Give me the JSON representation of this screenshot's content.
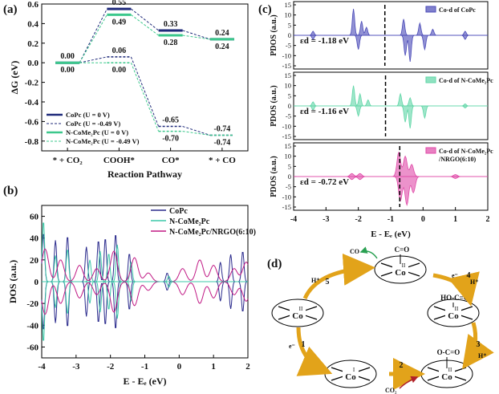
{
  "chart_data": [
    {
      "panel": "(a)",
      "type": "line",
      "xlabel": "Reaction Pathway",
      "ylabel": "ΔG (eV)",
      "ylim": [
        -0.9,
        0.6
      ],
      "yticks": [
        "-0.8",
        "-0.6",
        "-0.4",
        "-0.2",
        "0.0",
        "0.2",
        "0.4",
        "0.6"
      ],
      "categories": [
        "* + CO₂",
        "COOH*",
        "CO*",
        "* + CO"
      ],
      "series": [
        {
          "name": "CoPc (U = 0 V)",
          "color": "#1f2a7a",
          "dash": false,
          "values": [
            0.0,
            0.55,
            0.33,
            0.24
          ],
          "labels": [
            "0.00",
            "0.55",
            "0.33",
            "0.24"
          ]
        },
        {
          "name": "CoPc (U = -0.49 V)",
          "color": "#1f2a7a",
          "dash": true,
          "values": [
            0.0,
            0.06,
            -0.65,
            -0.74
          ],
          "labels": [
            "",
            "0.06",
            "-0.65",
            "-0.74"
          ]
        },
        {
          "name": "N-CoMe₂Pc (U = 0 V)",
          "color": "#3cc88c",
          "dash": false,
          "values": [
            0.0,
            0.49,
            0.28,
            0.24
          ],
          "labels": [
            "0.00",
            "0.49",
            "0.28",
            "0.24"
          ]
        },
        {
          "name": "N-CoMe₂Pc (U = -0.49 V)",
          "color": "#3cc88c",
          "dash": true,
          "values": [
            0.0,
            0.0,
            -0.7,
            -0.74
          ],
          "labels": [
            "",
            "0.00",
            "-0.70",
            "-0.74"
          ]
        }
      ],
      "legend": "bottom-left"
    },
    {
      "panel": "(b)",
      "type": "line",
      "xlabel": "E - Eₑ (eV)",
      "ylabel": "DOS (a.u.)",
      "xlim": [
        -4,
        2
      ],
      "ylim": [
        -70,
        70
      ],
      "xticks": [
        "-4",
        "-3",
        "-2",
        "-1",
        "0",
        "1",
        "2"
      ],
      "yticks": [
        "-60",
        "-40",
        "-20",
        "0",
        "20",
        "40",
        "60"
      ],
      "series": [
        {
          "name": "CoPc",
          "color": "#2a2a8c"
        },
        {
          "name": "N-CoMe₂Pc",
          "color": "#3cc8a8"
        },
        {
          "name": "N-CoMe₂Pc/NRGO(6:10)",
          "color": "#c01884"
        }
      ],
      "legend": "top-right"
    },
    {
      "panel": "(c)",
      "type": "area",
      "xlabel": "E - Eₑ (eV)",
      "ylabel": "PDOS (a.u.)",
      "xlim": [
        -4,
        2
      ],
      "xticks": [
        "-4",
        "-3",
        "-2",
        "-1",
        "0",
        "1",
        "2"
      ],
      "yticks": [
        "-15",
        "-10",
        "-5",
        "0",
        "5",
        "10",
        "15"
      ],
      "subplots": [
        {
          "legend": "Co-d of CoPc",
          "color": "#4a4ab8",
          "d_band_center": -1.18,
          "annotation": "εd = -1.18 eV"
        },
        {
          "legend": "Co-d of N-CoMe₂Pc",
          "color": "#5fd6a6",
          "d_band_center": -1.16,
          "annotation": "εd = -1.16 eV"
        },
        {
          "legend": "Co-d of N-CoMe₂Pc /NRGO(6:10)",
          "color": "#e04aa8",
          "d_band_center": -0.72,
          "annotation": "εd = -0.72 eV"
        }
      ]
    }
  ],
  "scheme": {
    "panel": "(d)",
    "steps": [
      "1",
      "2",
      "3",
      "4",
      "5"
    ],
    "species": [
      "C=O",
      "HO-C=O",
      "O-C=O",
      "CO",
      "CO₂"
    ],
    "metal": "Co",
    "oxidation": [
      "II",
      "I"
    ],
    "electron": "e⁻",
    "proton": "H⁺"
  }
}
